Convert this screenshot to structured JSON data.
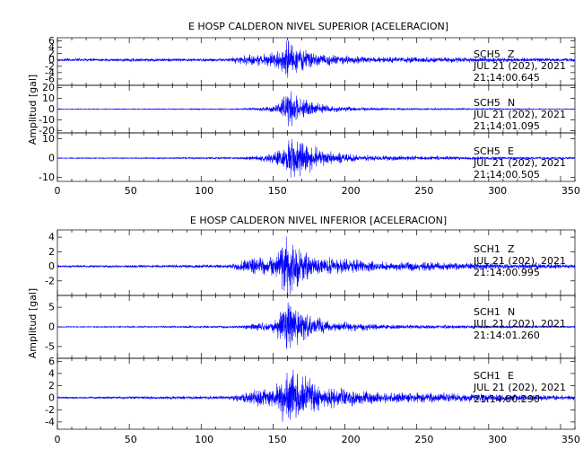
{
  "chart_data": [
    {
      "type": "line",
      "title": "E HOSP CALDERON NIVEL SUPERIOR [ACELERACION]",
      "ylabel": "Amplitud [gal]",
      "xlabel": "",
      "xlim": [
        0,
        360
      ],
      "x_ticks": [
        "0",
        "50",
        "100",
        "150",
        "200",
        "250",
        "300",
        "350"
      ],
      "series_color": "#0000ff",
      "traces": [
        {
          "station": "SCH5",
          "component": "Z",
          "date": "JUL 21 (202), 2021",
          "time": "21:14:00.645",
          "ylim": [
            -8,
            7
          ],
          "y_ticks": [
            "6",
            "4",
            "2",
            "0",
            "-2",
            "-4",
            "-6"
          ],
          "envelope": [
            {
              "x": 0,
              "a": 0.5
            },
            {
              "x": 120,
              "a": 0.55
            },
            {
              "x": 125,
              "a": 1.5
            },
            {
              "x": 145,
              "a": 2.0
            },
            {
              "x": 155,
              "a": 3.0
            },
            {
              "x": 160,
              "a": 6.5
            },
            {
              "x": 163,
              "a": 5.5
            },
            {
              "x": 170,
              "a": 3.5
            },
            {
              "x": 185,
              "a": 1.8
            },
            {
              "x": 220,
              "a": 1.0
            },
            {
              "x": 360,
              "a": 0.6
            }
          ]
        },
        {
          "station": "SCH5",
          "component": "N",
          "date": "JUL 21 (202), 2021",
          "time": "21:14:01.095",
          "ylim": [
            -22,
            22
          ],
          "y_ticks": [
            "20",
            "10",
            "0",
            "-10",
            "-20"
          ],
          "envelope": [
            {
              "x": 0,
              "a": 0.3
            },
            {
              "x": 125,
              "a": 0.5
            },
            {
              "x": 145,
              "a": 2.0
            },
            {
              "x": 155,
              "a": 6.0
            },
            {
              "x": 160,
              "a": 19.0
            },
            {
              "x": 165,
              "a": 14.0
            },
            {
              "x": 175,
              "a": 8.0
            },
            {
              "x": 190,
              "a": 3.0
            },
            {
              "x": 230,
              "a": 1.0
            },
            {
              "x": 360,
              "a": 0.3
            }
          ]
        },
        {
          "station": "SCH5",
          "component": "E",
          "date": "JUL 21 (202), 2021",
          "time": "21:14:00.505",
          "ylim": [
            -12,
            13
          ],
          "y_ticks": [
            "10",
            "0",
            "-10"
          ],
          "envelope": [
            {
              "x": 0,
              "a": 0.2
            },
            {
              "x": 125,
              "a": 0.5
            },
            {
              "x": 145,
              "a": 1.8
            },
            {
              "x": 155,
              "a": 5.0
            },
            {
              "x": 162,
              "a": 10.0
            },
            {
              "x": 172,
              "a": 9.0
            },
            {
              "x": 185,
              "a": 4.0
            },
            {
              "x": 210,
              "a": 1.5
            },
            {
              "x": 360,
              "a": 0.4
            }
          ]
        }
      ]
    },
    {
      "type": "line",
      "title": "E HOSP CALDERON NIVEL INFERIOR [ACELERACION]",
      "ylabel": "Amplitud [gal]",
      "xlabel": "",
      "xlim": [
        0,
        360
      ],
      "x_ticks": [
        "0",
        "50",
        "100",
        "150",
        "200",
        "250",
        "300",
        "350"
      ],
      "series_color": "#0000ff",
      "traces": [
        {
          "station": "SCH1",
          "component": "Z",
          "date": "JUL 21 (202), 2021",
          "time": "21:14:00.995",
          "ylim": [
            -4,
            5
          ],
          "y_ticks": [
            "4",
            "2",
            "0",
            "-2"
          ],
          "envelope": [
            {
              "x": 0,
              "a": 0.15
            },
            {
              "x": 120,
              "a": 0.25
            },
            {
              "x": 130,
              "a": 0.9
            },
            {
              "x": 150,
              "a": 1.5
            },
            {
              "x": 160,
              "a": 4.3
            },
            {
              "x": 165,
              "a": 3.0
            },
            {
              "x": 180,
              "a": 1.4
            },
            {
              "x": 220,
              "a": 0.7
            },
            {
              "x": 360,
              "a": 0.3
            }
          ]
        },
        {
          "station": "SCH1",
          "component": "N",
          "date": "JUL 21 (202), 2021",
          "time": "21:14:01.260",
          "ylim": [
            -8,
            8
          ],
          "y_ticks": [
            "5",
            "0",
            "-5"
          ],
          "envelope": [
            {
              "x": 0,
              "a": 0.1
            },
            {
              "x": 125,
              "a": 0.3
            },
            {
              "x": 150,
              "a": 1.5
            },
            {
              "x": 158,
              "a": 5.0
            },
            {
              "x": 162,
              "a": 7.0
            },
            {
              "x": 170,
              "a": 4.0
            },
            {
              "x": 190,
              "a": 1.5
            },
            {
              "x": 230,
              "a": 0.6
            },
            {
              "x": 360,
              "a": 0.2
            }
          ]
        },
        {
          "station": "SCH1",
          "component": "E",
          "date": "JUL 21 (202), 2021",
          "time": "21:14:00.290",
          "ylim": [
            -5.2,
            6.5
          ],
          "y_ticks": [
            "6",
            "4",
            "2",
            "0",
            "-2",
            "-4"
          ],
          "envelope": [
            {
              "x": 0,
              "a": 0.15
            },
            {
              "x": 120,
              "a": 0.3
            },
            {
              "x": 130,
              "a": 1.0
            },
            {
              "x": 150,
              "a": 2.0
            },
            {
              "x": 160,
              "a": 5.0
            },
            {
              "x": 168,
              "a": 4.2
            },
            {
              "x": 185,
              "a": 2.0
            },
            {
              "x": 220,
              "a": 1.0
            },
            {
              "x": 360,
              "a": 0.4
            }
          ]
        }
      ]
    }
  ]
}
